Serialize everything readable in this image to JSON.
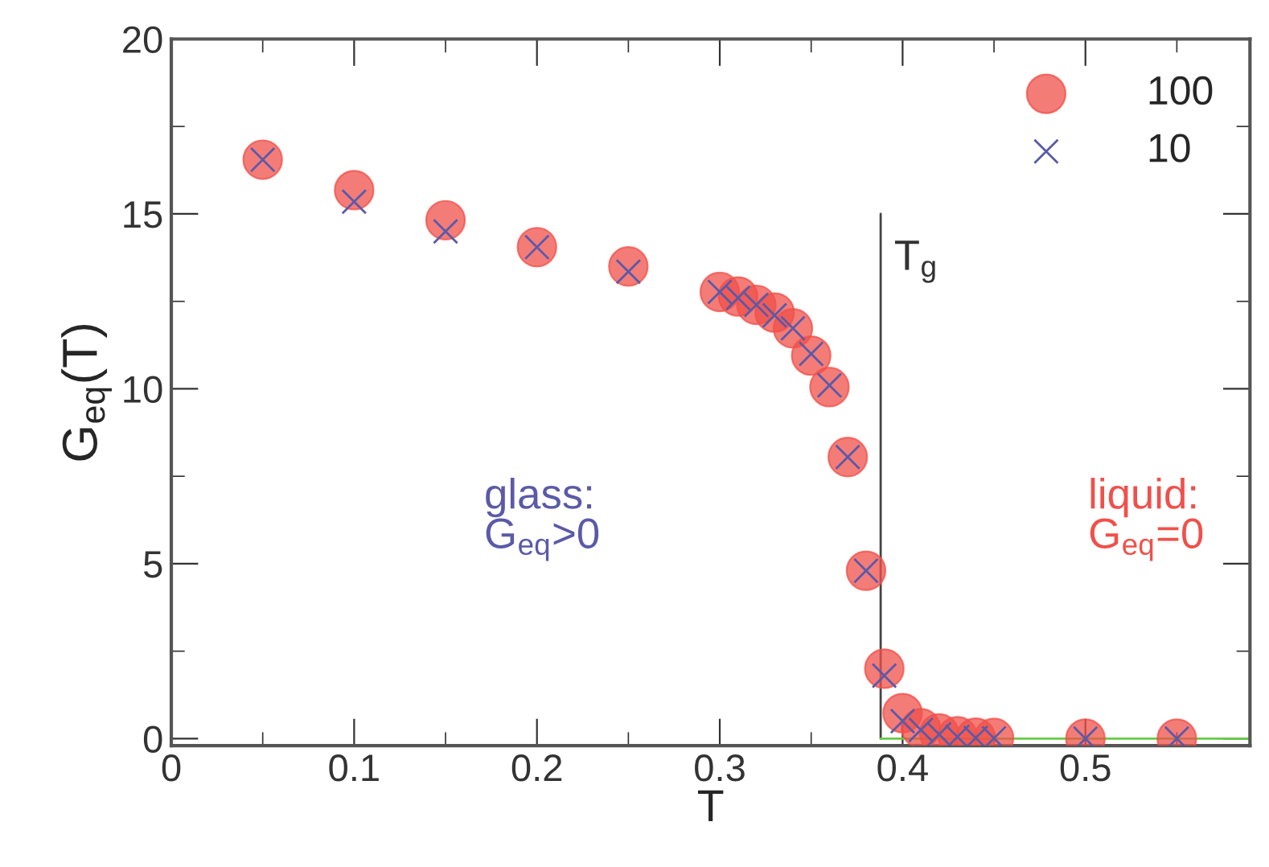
{
  "chart_data": {
    "type": "scatter",
    "xlabel": "T",
    "ylabel": "G$_{eq}$(T)",
    "xlim": [
      0,
      0.59
    ],
    "ylim": [
      -0.2,
      20
    ],
    "xticks": [
      0,
      0.1,
      0.2,
      0.3,
      0.4,
      0.5
    ],
    "yticks": [
      0,
      5,
      10,
      15,
      20
    ],
    "grid": false,
    "legend": "top right",
    "series": [
      {
        "name": "100",
        "color": "#f0504a",
        "marker": "circle",
        "x": [
          0.05,
          0.1,
          0.15,
          0.2,
          0.25,
          0.3,
          0.31,
          0.32,
          0.33,
          0.34,
          0.35,
          0.36,
          0.37,
          0.38,
          0.39,
          0.4,
          0.41,
          0.42,
          0.43,
          0.44,
          0.45,
          0.5,
          0.55
        ],
        "values": [
          16.55,
          15.68,
          14.82,
          14.05,
          13.5,
          12.77,
          12.64,
          12.4,
          12.18,
          11.73,
          10.95,
          10.05,
          8.05,
          4.8,
          2.0,
          0.73,
          0.3,
          0.15,
          0.07,
          0.03,
          0.02,
          0,
          0
        ]
      },
      {
        "name": "10",
        "color": "#5a5aa8",
        "marker": "cross",
        "x": [
          0.05,
          0.1,
          0.15,
          0.2,
          0.25,
          0.3,
          0.31,
          0.32,
          0.33,
          0.34,
          0.35,
          0.36,
          0.37,
          0.38,
          0.39,
          0.4,
          0.41,
          0.42,
          0.43,
          0.44,
          0.45,
          0.5,
          0.55
        ],
        "values": [
          16.55,
          15.35,
          14.5,
          14.05,
          13.35,
          12.77,
          12.6,
          12.4,
          12.1,
          11.73,
          11.0,
          10.1,
          8.05,
          4.8,
          1.8,
          0.5,
          0.25,
          0.12,
          0.05,
          0.02,
          0.01,
          0,
          0
        ]
      },
      {
        "type": "line",
        "color": "#444444",
        "x": [
          0.388,
          0.388
        ],
        "values": [
          0,
          15
        ]
      },
      {
        "type": "line",
        "color": "#66cc44",
        "x": [
          0.388,
          0.59
        ],
        "values": [
          0,
          0
        ]
      }
    ],
    "annotations": [
      {
        "text": "T$_{g}$",
        "x": 0.388,
        "y": 15
      },
      "glass:\nG$_{eq}$>0",
      "liquid:\nG$_{eq}$=0"
    ]
  }
}
